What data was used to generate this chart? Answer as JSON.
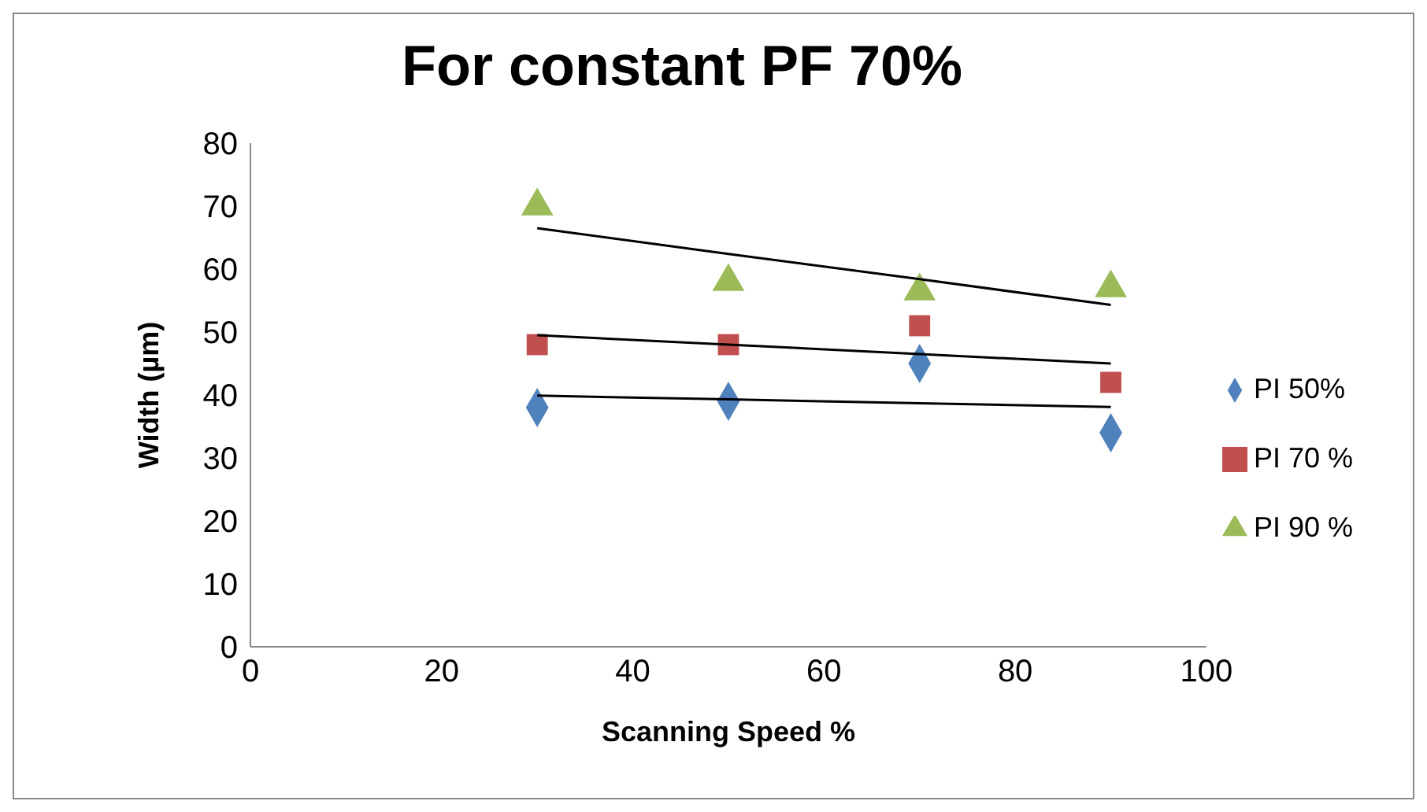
{
  "chart_data": {
    "type": "scatter",
    "title": "For constant PF 70%",
    "xlabel": "Scanning Speed %",
    "ylabel": "Width (µm)",
    "x": [
      30,
      50,
      70,
      90
    ],
    "series": [
      {
        "name": "PI 50%",
        "color": "#4f81bd",
        "marker": "diamond",
        "values": [
          38,
          39,
          45,
          34
        ]
      },
      {
        "name": "PI 70 %",
        "color": "#c0504d",
        "marker": "square",
        "values": [
          48,
          48,
          51,
          42
        ]
      },
      {
        "name": "PI 90 %",
        "color": "#9bbb59",
        "marker": "triangle",
        "values": [
          70,
          58,
          56.5,
          57
        ]
      },
      {
        "type": "line",
        "color": "#000000",
        "values": [
          39.9,
          39.3,
          38.7,
          38.1
        ]
      },
      {
        "type": "line",
        "color": "#000000",
        "values": [
          49.5,
          48,
          46.5,
          45
        ]
      },
      {
        "type": "line",
        "color": "#000000",
        "values": [
          66.5,
          62.4,
          58.4,
          54.3
        ]
      }
    ],
    "xlim": [
      0,
      100
    ],
    "xticks": [
      0,
      20,
      40,
      60,
      80,
      100
    ],
    "ylim": [
      0,
      80
    ],
    "yticks": [
      0,
      10,
      20,
      30,
      40,
      50,
      60,
      70,
      80
    ],
    "grid": false,
    "legend": "right"
  }
}
